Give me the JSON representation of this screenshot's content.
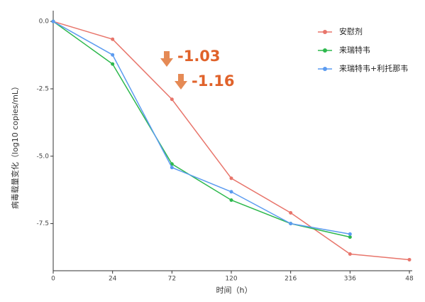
{
  "chart_data": {
    "type": "line",
    "xlabel": "时间（h）",
    "ylabel": "病毒载量变化（log10 copies/mL）",
    "categories": [
      "0",
      "24",
      "72",
      "120",
      "216",
      "336",
      "48"
    ],
    "series": [
      {
        "name": "安慰剂",
        "color": "#e8756b",
        "values": [
          0,
          -0.66,
          -2.89,
          -5.82,
          -7.1,
          -8.63,
          -8.84
        ]
      },
      {
        "name": "来瑞特韦",
        "color": "#2db84d",
        "values": [
          0,
          -1.58,
          -5.29,
          -6.63,
          -7.5,
          -8.0,
          null
        ]
      },
      {
        "name": "来瑞特韦+利托那韦",
        "color": "#5b9bf0",
        "values": [
          0,
          -1.24,
          -5.42,
          -6.32,
          -7.5,
          -7.89,
          null
        ]
      }
    ],
    "ylim": [
      -9.25,
      0.4
    ],
    "yticks": [
      {
        "value": 0,
        "label": "0.0"
      },
      -2.5,
      {
        "value": -5,
        "label": "-5.0"
      },
      -7.5
    ],
    "annotations": [
      "-1.03",
      "-1.16"
    ],
    "annotation_color": "#e0622a",
    "legend": "top-right"
  }
}
